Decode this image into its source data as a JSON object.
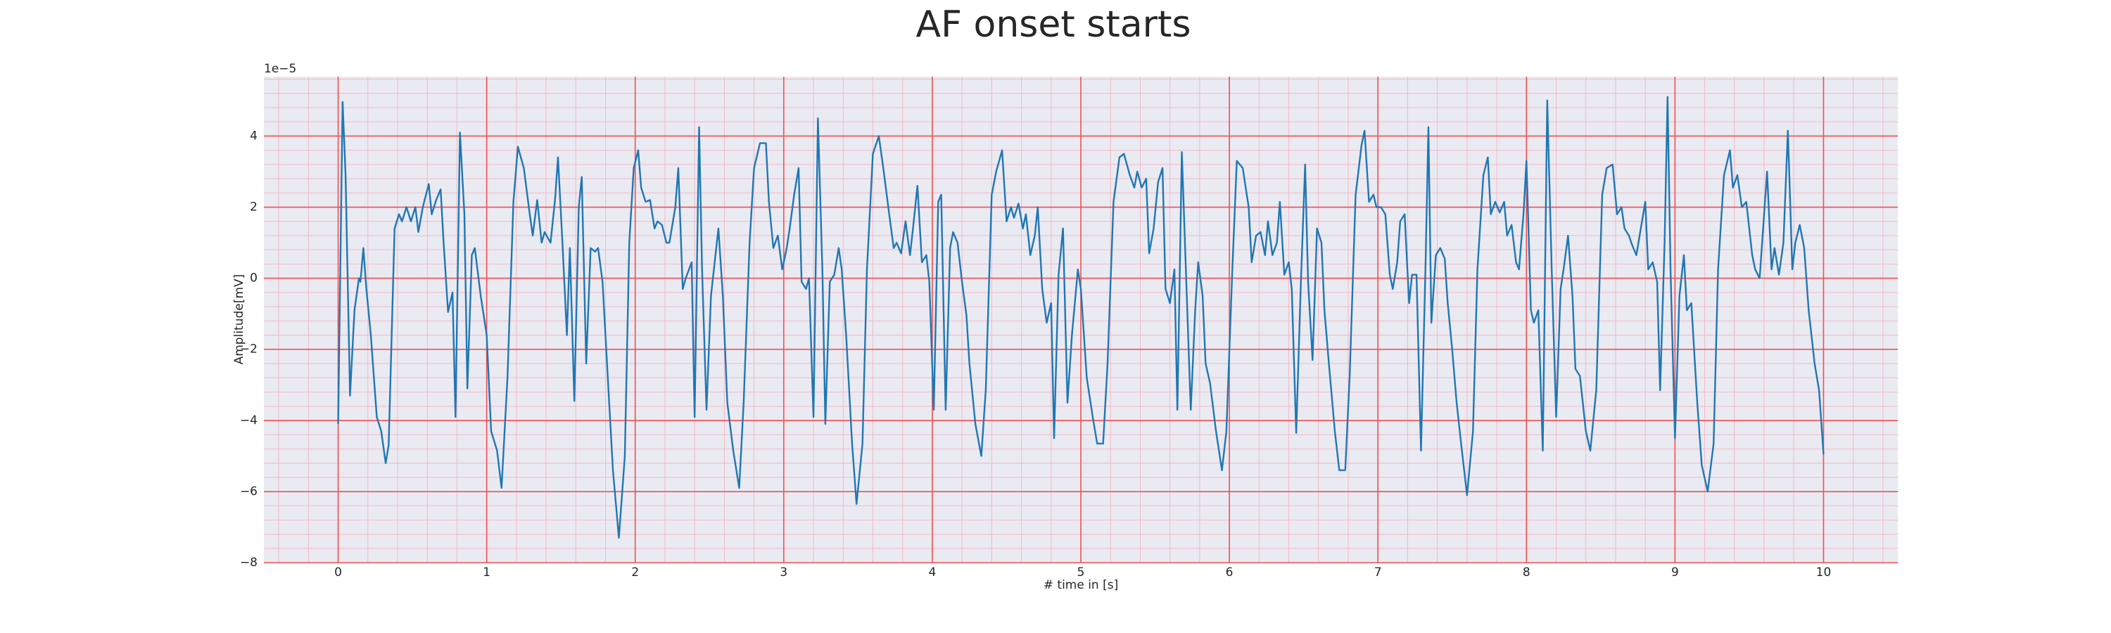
{
  "chart_data": {
    "type": "line",
    "title": "AF onset starts",
    "xlabel": "# time in [s]",
    "ylabel": "Amplitude[mV]",
    "y_offset_label": "1e−5",
    "xlim": [
      -0.5,
      10.5
    ],
    "ylim": [
      -8,
      5.67
    ],
    "xticks": [
      0,
      1,
      2,
      3,
      4,
      5,
      6,
      7,
      8,
      9,
      10
    ],
    "yticks": [
      {
        "value": -8,
        "label": "−8"
      },
      {
        "value": -6,
        "label": "−6"
      },
      {
        "value": -4,
        "label": "−4"
      },
      {
        "value": -2,
        "label": "−2"
      },
      0,
      2,
      4
    ],
    "grid": true,
    "grid_color": "#f05050",
    "minor_grid": true,
    "minor_grid_color": "#f4b8c4",
    "minor_divisions": 5,
    "background": "#eaeaf2",
    "x": [
      0,
      0.03,
      0.05,
      0.08,
      0.11,
      0.14,
      0.15,
      0.17,
      0.19,
      0.22,
      0.26,
      0.29,
      0.32,
      0.34,
      0.38,
      0.41,
      0.43,
      0.46,
      0.49,
      0.52,
      0.54,
      0.57,
      0.61,
      0.63,
      0.66,
      0.69,
      0.71,
      0.74,
      0.77,
      0.79,
      0.82,
      0.85,
      0.87,
      0.9,
      0.92,
      0.96,
      1.0,
      1.03,
      1.07,
      1.1,
      1.14,
      1.18,
      1.21,
      1.25,
      1.29,
      1.31,
      1.34,
      1.37,
      1.39,
      1.43,
      1.46,
      1.48,
      1.51,
      1.54,
      1.56,
      1.59,
      1.62,
      1.64,
      1.67,
      1.7,
      1.73,
      1.75,
      1.78,
      1.82,
      1.85,
      1.89,
      1.93,
      1.96,
      1.99,
      2.02,
      2.04,
      2.07,
      2.1,
      2.13,
      2.15,
      2.18,
      2.21,
      2.23,
      2.27,
      2.29,
      2.32,
      2.34,
      2.38,
      2.4,
      2.43,
      2.45,
      2.48,
      2.51,
      2.54,
      2.56,
      2.59,
      2.62,
      2.66,
      2.7,
      2.73,
      2.77,
      2.8,
      2.84,
      2.88,
      2.9,
      2.93,
      2.96,
      2.99,
      3.02,
      3.04,
      3.07,
      3.1,
      3.12,
      3.15,
      3.17,
      3.2,
      3.23,
      3.26,
      3.28,
      3.31,
      3.34,
      3.37,
      3.39,
      3.42,
      3.46,
      3.49,
      3.53,
      3.56,
      3.6,
      3.64,
      3.67,
      3.71,
      3.74,
      3.76,
      3.79,
      3.82,
      3.85,
      3.87,
      3.9,
      3.93,
      3.96,
      3.98,
      4.01,
      4.04,
      4.06,
      4.09,
      4.12,
      4.14,
      4.17,
      4.2,
      4.23,
      4.25,
      4.29,
      4.33,
      4.36,
      4.4,
      4.43,
      4.47,
      4.5,
      4.53,
      4.55,
      4.58,
      4.61,
      4.63,
      4.66,
      4.69,
      4.71,
      4.74,
      4.77,
      4.8,
      4.82,
      4.85,
      4.88,
      4.91,
      4.94,
      4.98,
      5.0,
      5.04,
      5.08,
      5.11,
      5.15,
      5.18,
      5.22,
      5.26,
      5.29,
      5.33,
      5.36,
      5.38,
      5.41,
      5.44,
      5.46,
      5.49,
      5.52,
      5.55,
      5.57,
      5.6,
      5.63,
      5.65,
      5.68,
      5.71,
      5.74,
      5.77,
      5.79,
      5.82,
      5.84,
      5.87,
      5.91,
      5.95,
      5.98,
      6.02,
      6.05,
      6.09,
      6.13,
      6.15,
      6.18,
      6.21,
      6.24,
      6.26,
      6.29,
      6.32,
      6.34,
      6.37,
      6.4,
      6.42,
      6.45,
      6.48,
      6.51,
      6.53,
      6.56,
      6.59,
      6.62,
      6.64,
      6.67,
      6.71,
      6.74,
      6.78,
      6.81,
      6.85,
      6.89,
      6.91,
      6.94,
      6.97,
      6.99,
      7.02,
      7.05,
      7.08,
      7.1,
      7.13,
      7.15,
      7.18,
      7.21,
      7.23,
      7.26,
      7.29,
      7.32,
      7.34,
      7.36,
      7.39,
      7.42,
      7.45,
      7.47,
      7.5,
      7.53,
      7.56,
      7.6,
      7.64,
      7.67,
      7.71,
      7.74,
      7.76,
      7.79,
      7.82,
      7.85,
      7.87,
      7.9,
      7.93,
      7.95,
      7.98,
      8.0,
      8.03,
      8.05,
      8.08,
      8.11,
      8.14,
      8.17,
      8.2,
      8.23,
      8.25,
      8.28,
      8.31,
      8.33,
      8.36,
      8.4,
      8.43,
      8.47,
      8.51,
      8.54,
      8.58,
      8.61,
      8.64,
      8.66,
      8.69,
      8.71,
      8.74,
      8.77,
      8.8,
      8.82,
      8.85,
      8.88,
      8.9,
      8.93,
      8.95,
      8.97,
      9.0,
      9.03,
      9.06,
      9.08,
      9.11,
      9.15,
      9.18,
      9.22,
      9.26,
      9.29,
      9.33,
      9.37,
      9.39,
      9.42,
      9.45,
      9.48,
      9.52,
      9.54,
      9.57,
      9.6,
      9.62,
      9.65,
      9.67,
      9.7,
      9.73,
      9.76,
      9.79,
      9.81,
      9.84,
      9.87,
      9.9,
      9.94,
      9.97,
      10.0
    ],
    "series": [
      {
        "color": "#1f77b4",
        "values": [
          -4.1,
          4.96,
          2.9,
          -3.3,
          -0.9,
          0,
          -0.1,
          0.85,
          -0.3,
          -1.6,
          -3.9,
          -4.3,
          -5.2,
          -4.7,
          1.4,
          1.8,
          1.6,
          2.0,
          1.6,
          2.0,
          1.3,
          2.0,
          2.65,
          1.8,
          2.2,
          2.5,
          1.0,
          -0.95,
          -0.4,
          -3.9,
          4.1,
          1.8,
          -3.1,
          0.65,
          0.85,
          -0.5,
          -1.6,
          -4.3,
          -4.85,
          -5.9,
          -2.8,
          2.15,
          3.7,
          3.1,
          1.8,
          1.2,
          2.2,
          1.0,
          1.3,
          1.0,
          2.2,
          3.4,
          1.0,
          -1.6,
          0.85,
          -3.45,
          2.0,
          2.85,
          -2.4,
          0.85,
          0.75,
          0.85,
          -0.1,
          -3.15,
          -5.4,
          -7.3,
          -5.0,
          1.0,
          3.1,
          3.6,
          2.55,
          2.15,
          2.2,
          1.4,
          1.6,
          1.5,
          1.0,
          1.0,
          2.0,
          3.1,
          -0.3,
          0.0,
          0.45,
          -3.9,
          4.25,
          0.25,
          -3.7,
          -0.5,
          0.65,
          1.4,
          -0.5,
          -3.5,
          -4.85,
          -5.9,
          -3.5,
          1.0,
          3.1,
          3.8,
          3.8,
          2.15,
          0.85,
          1.2,
          0.25,
          0.85,
          1.4,
          2.35,
          3.1,
          -0.1,
          -0.3,
          0.0,
          -3.9,
          4.5,
          0.25,
          -4.1,
          -0.1,
          0.1,
          0.85,
          0.25,
          -1.6,
          -4.65,
          -6.35,
          -4.65,
          0.25,
          3.5,
          4.0,
          3.1,
          1.8,
          0.85,
          1.0,
          0.7,
          1.6,
          0.65,
          1.4,
          2.6,
          0.45,
          0.65,
          -0.1,
          -3.7,
          2.15,
          2.35,
          -3.7,
          0.85,
          1.3,
          1.0,
          -0.1,
          -1.05,
          -2.4,
          -4.1,
          -5.0,
          -3.15,
          2.35,
          3.0,
          3.6,
          1.6,
          2.0,
          1.7,
          2.1,
          1.4,
          1.8,
          0.65,
          1.2,
          2.0,
          -0.3,
          -1.25,
          -0.7,
          -4.5,
          0.1,
          1.4,
          -3.5,
          -1.6,
          0.25,
          -0.3,
          -2.8,
          -3.9,
          -4.65,
          -4.65,
          -2.4,
          2.15,
          3.4,
          3.5,
          2.9,
          2.55,
          3.0,
          2.55,
          2.8,
          0.7,
          1.4,
          2.7,
          3.1,
          -0.3,
          -0.7,
          0.25,
          -3.7,
          3.55,
          -0.1,
          -3.7,
          -0.9,
          0.45,
          -0.5,
          -2.4,
          -2.95,
          -4.3,
          -5.4,
          -4.3,
          0.25,
          3.3,
          3.1,
          2.0,
          0.45,
          1.2,
          1.3,
          0.65,
          1.6,
          0.65,
          1.0,
          2.15,
          0.1,
          0.45,
          -0.3,
          -4.35,
          -0.3,
          3.2,
          -0.1,
          -2.3,
          1.4,
          1.0,
          -0.9,
          -2.4,
          -4.3,
          -5.4,
          -5.4,
          -2.75,
          2.35,
          3.75,
          4.15,
          2.15,
          2.35,
          2.0,
          2.0,
          1.8,
          0.1,
          -0.3,
          0.45,
          1.6,
          1.8,
          -0.7,
          0.1,
          0.1,
          -4.85,
          0.25,
          4.25,
          -1.25,
          0.65,
          0.85,
          0.55,
          -0.7,
          -2.0,
          -3.5,
          -4.65,
          -6.1,
          -4.3,
          0.25,
          2.9,
          3.4,
          1.8,
          2.15,
          1.85,
          2.15,
          1.2,
          1.5,
          0.45,
          0.25,
          1.8,
          3.3,
          -0.9,
          -1.25,
          -0.9,
          -4.85,
          5.0,
          0.25,
          -3.9,
          -0.3,
          0.25,
          1.2,
          -0.5,
          -2.55,
          -2.75,
          -4.3,
          -4.85,
          -3.15,
          2.35,
          3.1,
          3.2,
          1.8,
          2.0,
          1.4,
          1.2,
          0.95,
          0.65,
          1.4,
          2.15,
          0.25,
          0.45,
          -0.1,
          -3.15,
          1.0,
          5.1,
          0.25,
          -4.5,
          -0.5,
          0.65,
          -0.9,
          -0.7,
          -3.5,
          -5.25,
          -6.0,
          -4.65,
          0.25,
          2.9,
          3.6,
          2.55,
          2.9,
          2.0,
          2.15,
          0.65,
          0.25,
          0.0,
          1.8,
          3.0,
          0.25,
          0.85,
          0.1,
          1.0,
          4.15,
          0.25,
          1.0,
          1.5,
          0.85,
          -0.9,
          -2.4,
          -3.15,
          -4.95
        ]
      }
    ]
  }
}
